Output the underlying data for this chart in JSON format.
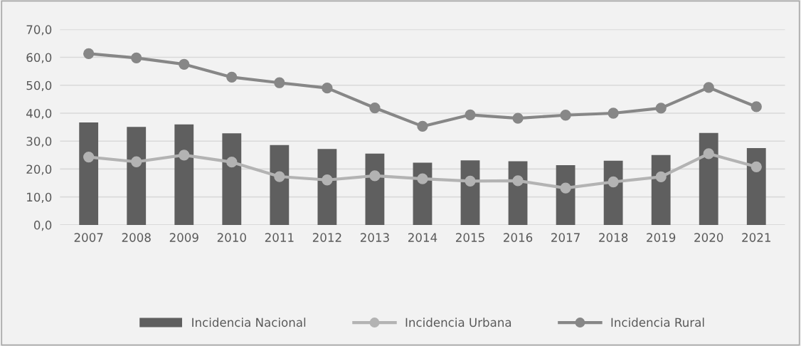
{
  "chart_data": {
    "type": "bar",
    "categories": [
      "2007",
      "2008",
      "2009",
      "2010",
      "2011",
      "2012",
      "2013",
      "2014",
      "2015",
      "2016",
      "2017",
      "2018",
      "2019",
      "2020",
      "2021"
    ],
    "series": [
      {
        "name": "Incidencia Nacional",
        "color": "#5f5f5f",
        "values": [
          36.7,
          35.1,
          36.0,
          32.8,
          28.6,
          27.2,
          25.5,
          22.3,
          23.1,
          22.8,
          21.4,
          23.0,
          25.0,
          32.9,
          27.5
        ]
      },
      {
        "name": "Incidencia Urbana",
        "type": "line",
        "color": "#b3b3b3",
        "values": [
          24.3,
          22.6,
          25.0,
          22.5,
          17.3,
          16.1,
          17.6,
          16.5,
          15.7,
          15.8,
          13.2,
          15.4,
          17.2,
          25.5,
          20.8
        ]
      },
      {
        "name": "Incidencia Rural",
        "type": "line",
        "color": "#878787",
        "values": [
          61.3,
          59.8,
          57.5,
          52.9,
          50.9,
          49.0,
          41.9,
          35.3,
          39.4,
          38.2,
          39.3,
          40.0,
          41.8,
          49.2,
          42.3
        ]
      }
    ],
    "ylim": [
      0,
      70
    ],
    "yticks": [
      {
        "value": 0,
        "label": "0,0"
      },
      {
        "value": 10,
        "label": "10,0"
      },
      {
        "value": 20,
        "label": "20,0"
      },
      {
        "value": 30,
        "label": "30,0"
      },
      {
        "value": 40,
        "label": "40,0"
      },
      {
        "value": 50,
        "label": "50,0"
      },
      {
        "value": 60,
        "label": "60,0"
      },
      {
        "value": 70,
        "label": "70,0"
      }
    ],
    "grid": "y",
    "legend": "bottom",
    "marker": "circle",
    "line_style": "solid"
  }
}
